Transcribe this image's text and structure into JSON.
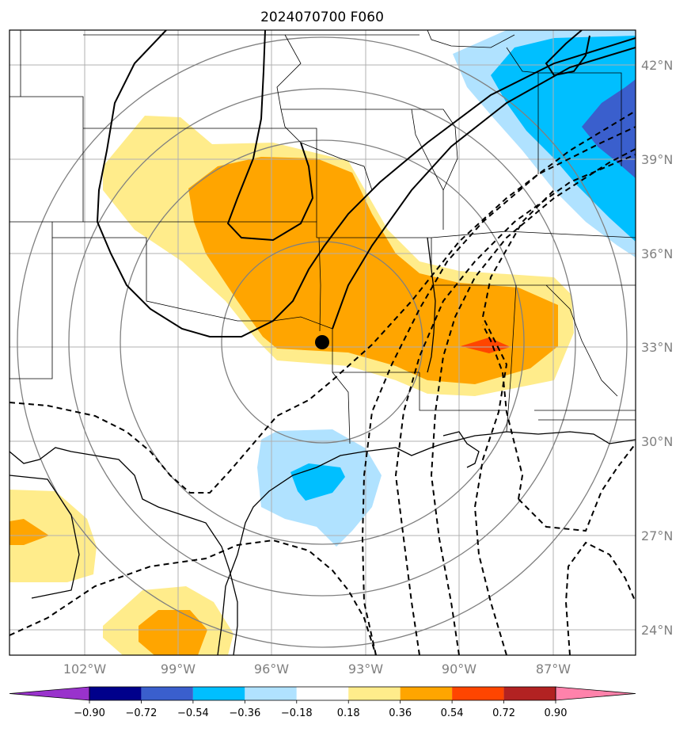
{
  "title": "2024070700 F060",
  "latitude_ticks": [
    "42°N",
    "39°N",
    "36°N",
    "33°N",
    "30°N",
    "27°N",
    "24°N"
  ],
  "longitude_ticks": [
    "102°W",
    "99°W",
    "96°W",
    "93°W",
    "90°W",
    "87°W"
  ],
  "colorbar": {
    "labels": [
      "−0.90",
      "−0.72",
      "−0.54",
      "−0.36",
      "−0.18",
      "0.18",
      "0.36",
      "0.54",
      "0.72",
      "0.90"
    ],
    "colors": [
      "#9932cc",
      "#00008b",
      "#3a5fcd",
      "#00bfff",
      "#b0e2ff",
      "#ffffff",
      "#ffec8b",
      "#ffa500",
      "#ff4500",
      "#b22222",
      "#ff82ab"
    ]
  },
  "field_colors": {
    "pos_low": "#ffec8b",
    "pos_mid": "#ffa500",
    "pos_high": "#ff4500",
    "neg_low": "#b0e2ff",
    "neg_mid": "#00bfff",
    "neg_high": "#3a5fcd"
  },
  "marker_icon": "black-dot-icon"
}
